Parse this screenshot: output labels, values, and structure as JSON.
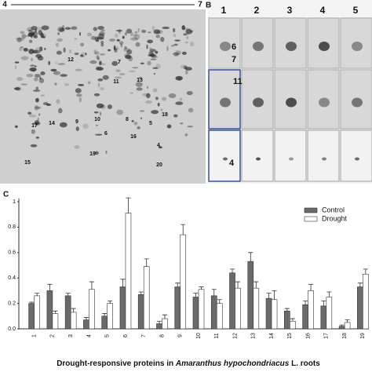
{
  "gel": {
    "ph_start": "4",
    "ph_end": "7",
    "spots": [
      "12",
      "7",
      "11",
      "13",
      "9",
      "10",
      "8",
      "5",
      "18",
      "17",
      "14",
      "16",
      "19",
      "4",
      "20",
      "15",
      "6"
    ]
  },
  "panel_b": {
    "label": "B",
    "lanes": [
      "1",
      "2",
      "3",
      "4",
      "5"
    ],
    "markers": [
      "6",
      "7",
      "11",
      "4"
    ]
  },
  "chart_data": {
    "type": "bar",
    "panel": "C",
    "x_label_start": "Drought-responsive proteins in",
    "x_label_species": "Amaranthus hypochondriacus",
    "x_label_end": "L. roots",
    "categories": [
      "1",
      "2",
      "3",
      "4",
      "5",
      "6",
      "7",
      "8",
      "9",
      "10",
      "11",
      "12",
      "13",
      "14",
      "15",
      "16",
      "17",
      "18",
      "19"
    ],
    "series": [
      {
        "name": "Control",
        "color": "#6b6b6b",
        "values": [
          0.2,
          0.3,
          0.26,
          0.07,
          0.1,
          0.33,
          0.27,
          0.04,
          0.33,
          0.25,
          0.26,
          0.44,
          0.53,
          0.24,
          0.14,
          0.19,
          0.18,
          0.02,
          0.33
        ],
        "errors": [
          0.01,
          0.05,
          0.02,
          0.02,
          0.02,
          0.06,
          0.02,
          0.02,
          0.03,
          0.03,
          0.05,
          0.03,
          0.07,
          0.04,
          0.02,
          0.03,
          0.04,
          0.01,
          0.03
        ]
      },
      {
        "name": "Drought",
        "color": "#ffffff",
        "values": [
          0.26,
          0.12,
          0.13,
          0.31,
          0.2,
          0.91,
          0.49,
          0.08,
          0.74,
          0.31,
          0.2,
          0.32,
          0.32,
          0.23,
          0.06,
          0.3,
          0.25,
          0.05,
          0.43
        ],
        "errors": [
          0.02,
          0.02,
          0.03,
          0.06,
          0.02,
          0.12,
          0.06,
          0.03,
          0.08,
          0.02,
          0.03,
          0.05,
          0.05,
          0.07,
          0.02,
          0.05,
          0.04,
          0.02,
          0.04
        ]
      }
    ],
    "ylim": [
      0,
      1
    ],
    "yticks": [
      {
        "value": 0,
        "label": "0.0"
      },
      0.2,
      0.4,
      0.6,
      0.8,
      1
    ],
    "legend": "top-right"
  }
}
